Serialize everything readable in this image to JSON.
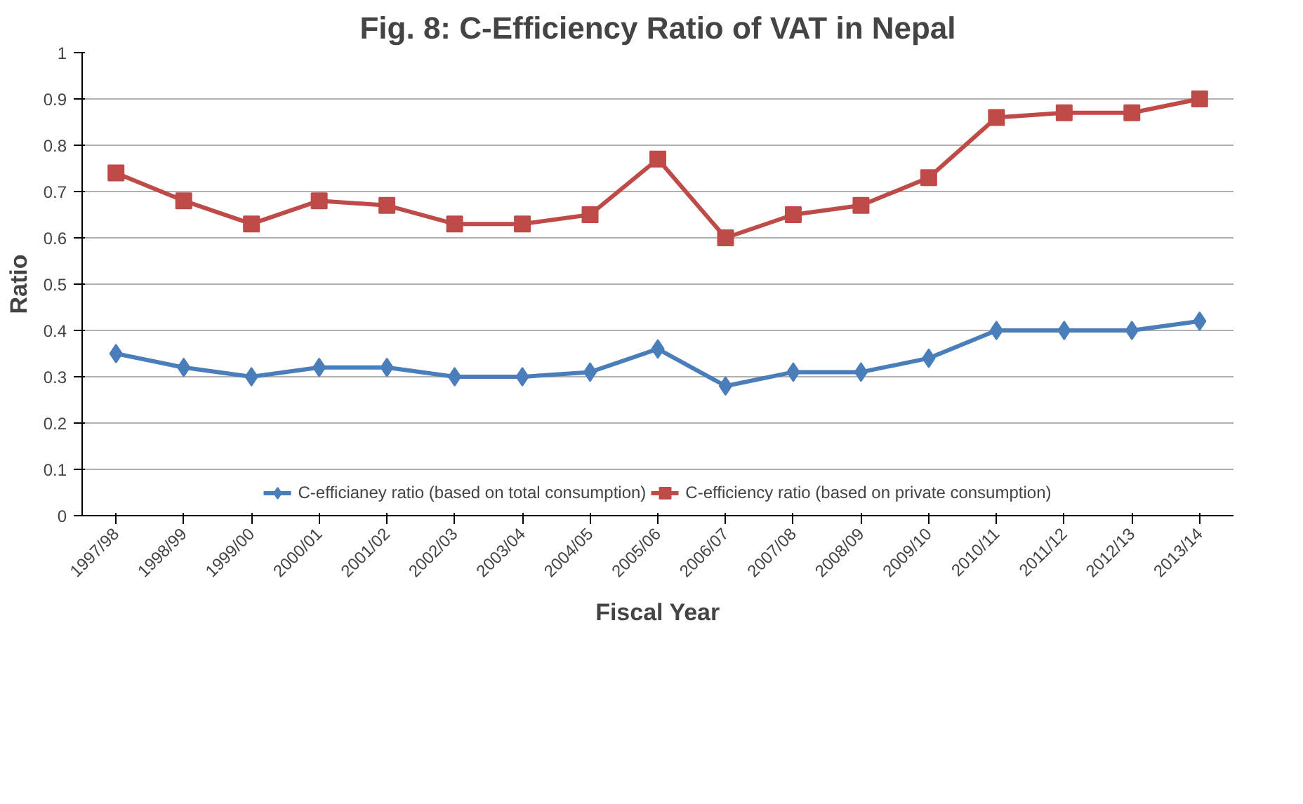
{
  "chart_data": {
    "type": "line",
    "title": "Fig. 8: C-Efficiency Ratio of VAT in Nepal",
    "xlabel": "Fiscal Year",
    "ylabel": "Ratio",
    "categories": [
      "1997/98",
      "1998/99",
      "1999/00",
      "2000/01",
      "2001/02",
      "2002/03",
      "2003/04",
      "2004/05",
      "2005/06",
      "2006/07",
      "2007/08",
      "2008/09",
      "2009/10",
      "2010/11",
      "2011/12",
      "2012/13",
      "2013/14"
    ],
    "series": [
      {
        "name": "C-efficianey ratio (based on total consumption)",
        "color": "#4a7ebb",
        "marker": "diamond",
        "values": [
          0.35,
          0.32,
          0.3,
          0.32,
          0.32,
          0.3,
          0.3,
          0.31,
          0.36,
          0.28,
          0.31,
          0.31,
          0.34,
          0.4,
          0.4,
          0.4,
          0.42
        ]
      },
      {
        "name": "C-efficiency ratio (based on private consumption)",
        "color": "#be4b48",
        "marker": "square",
        "values": [
          0.74,
          0.68,
          0.63,
          0.68,
          0.67,
          0.63,
          0.63,
          0.65,
          0.77,
          0.6,
          0.65,
          0.67,
          0.73,
          0.86,
          0.87,
          0.87,
          0.9
        ]
      }
    ],
    "ylim": [
      0,
      1
    ],
    "yticks": [
      0,
      0.1,
      0.2,
      0.3,
      0.4,
      0.5,
      0.6,
      0.7,
      0.8,
      0.9,
      1
    ],
    "grid": "y",
    "legend": "bottom",
    "line_style": "solid"
  }
}
